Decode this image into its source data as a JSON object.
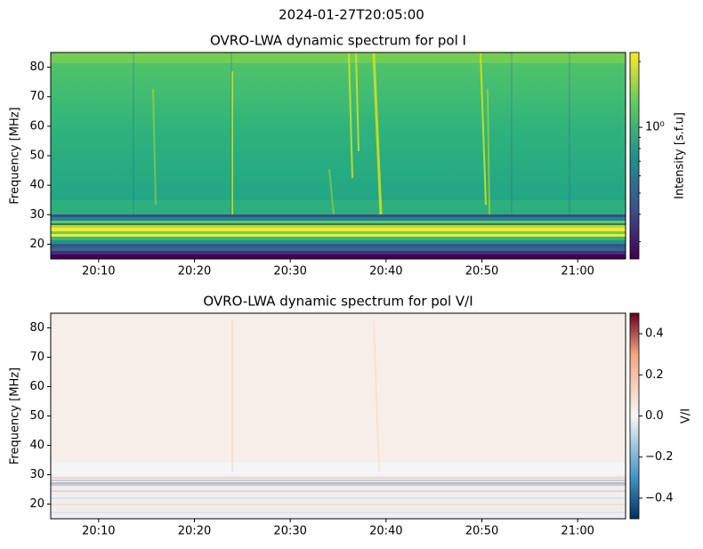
{
  "title": "2024-01-27T20:05:00",
  "chart_data": [
    {
      "type": "heatmap",
      "title": "OVRO-LWA dynamic spectrum for pol I",
      "ylabel": "Frequency [MHz]",
      "xlim": [
        1205,
        1265
      ],
      "xticks": [
        {
          "value": 1210,
          "label": "20:10"
        },
        {
          "value": 1220,
          "label": "20:20"
        },
        {
          "value": 1230,
          "label": "20:30"
        },
        {
          "value": 1240,
          "label": "20:40"
        },
        {
          "value": 1250,
          "label": "20:50"
        },
        {
          "value": 1260,
          "label": "21:00"
        }
      ],
      "ylim": [
        15,
        85
      ],
      "yticks": [
        20,
        30,
        40,
        50,
        60,
        70,
        80
      ],
      "colorbar": {
        "label": "Intensity [s.f.u]",
        "colormap": "viridis",
        "log_scale": true,
        "clim": [
          0.25,
          2.2
        ],
        "ticks": [
          {
            "value": 1,
            "label": "10⁰"
          }
        ],
        "minor_ticks": [
          0.3,
          0.4,
          0.5,
          0.6,
          0.7,
          0.8,
          0.9,
          2
        ]
      }
    },
    {
      "type": "heatmap",
      "title": "OVRO-LWA dynamic spectrum for pol V/I",
      "ylabel": "Frequency [MHz]",
      "xlim": [
        1205,
        1265
      ],
      "xticks": [
        {
          "value": 1210,
          "label": "20:10"
        },
        {
          "value": 1220,
          "label": "20:20"
        },
        {
          "value": 1230,
          "label": "20:30"
        },
        {
          "value": 1240,
          "label": "20:40"
        },
        {
          "value": 1250,
          "label": "20:50"
        },
        {
          "value": 1260,
          "label": "21:00"
        }
      ],
      "ylim": [
        15,
        85
      ],
      "yticks": [
        20,
        30,
        40,
        50,
        60,
        70,
        80
      ],
      "colorbar": {
        "label": "V/I",
        "colormap": "RdBu_r",
        "log_scale": false,
        "clim": [
          -0.5,
          0.5
        ],
        "ticks": [
          {
            "value": -0.4,
            "label": "−0.4"
          },
          {
            "value": -0.2,
            "label": "−0.2"
          },
          {
            "value": 0,
            "label": "0.0"
          },
          0.2,
          0.4
        ],
        "minor_ticks": []
      }
    }
  ]
}
